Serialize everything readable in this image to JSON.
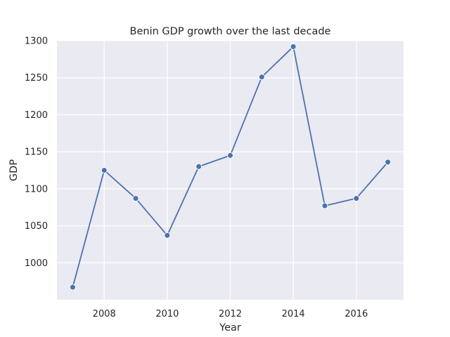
{
  "chart_data": {
    "type": "line",
    "title": "Benin GDP growth over the last decade",
    "xlabel": "Year",
    "ylabel": "GDP",
    "x": [
      2007,
      2008,
      2009,
      2010,
      2011,
      2012,
      2013,
      2014,
      2015,
      2016,
      2017
    ],
    "series": [
      {
        "values": [
          967,
          1125,
          1087,
          1037,
          1130,
          1145,
          1251,
          1292,
          1077,
          1087,
          1136
        ]
      }
    ],
    "xlim": [
      2006.5,
      2017.5
    ],
    "ylim": [
      950,
      1300
    ],
    "xticks": [
      2008,
      2010,
      2012,
      2014,
      2016
    ],
    "yticks": [
      1000,
      1050,
      1100,
      1150,
      1200,
      1250,
      1300
    ],
    "grid": true,
    "style": "seaborn-darkgrid",
    "colors": {
      "line": "#4c72b0",
      "background": "#eaeaf2",
      "grid": "#ffffff"
    }
  }
}
